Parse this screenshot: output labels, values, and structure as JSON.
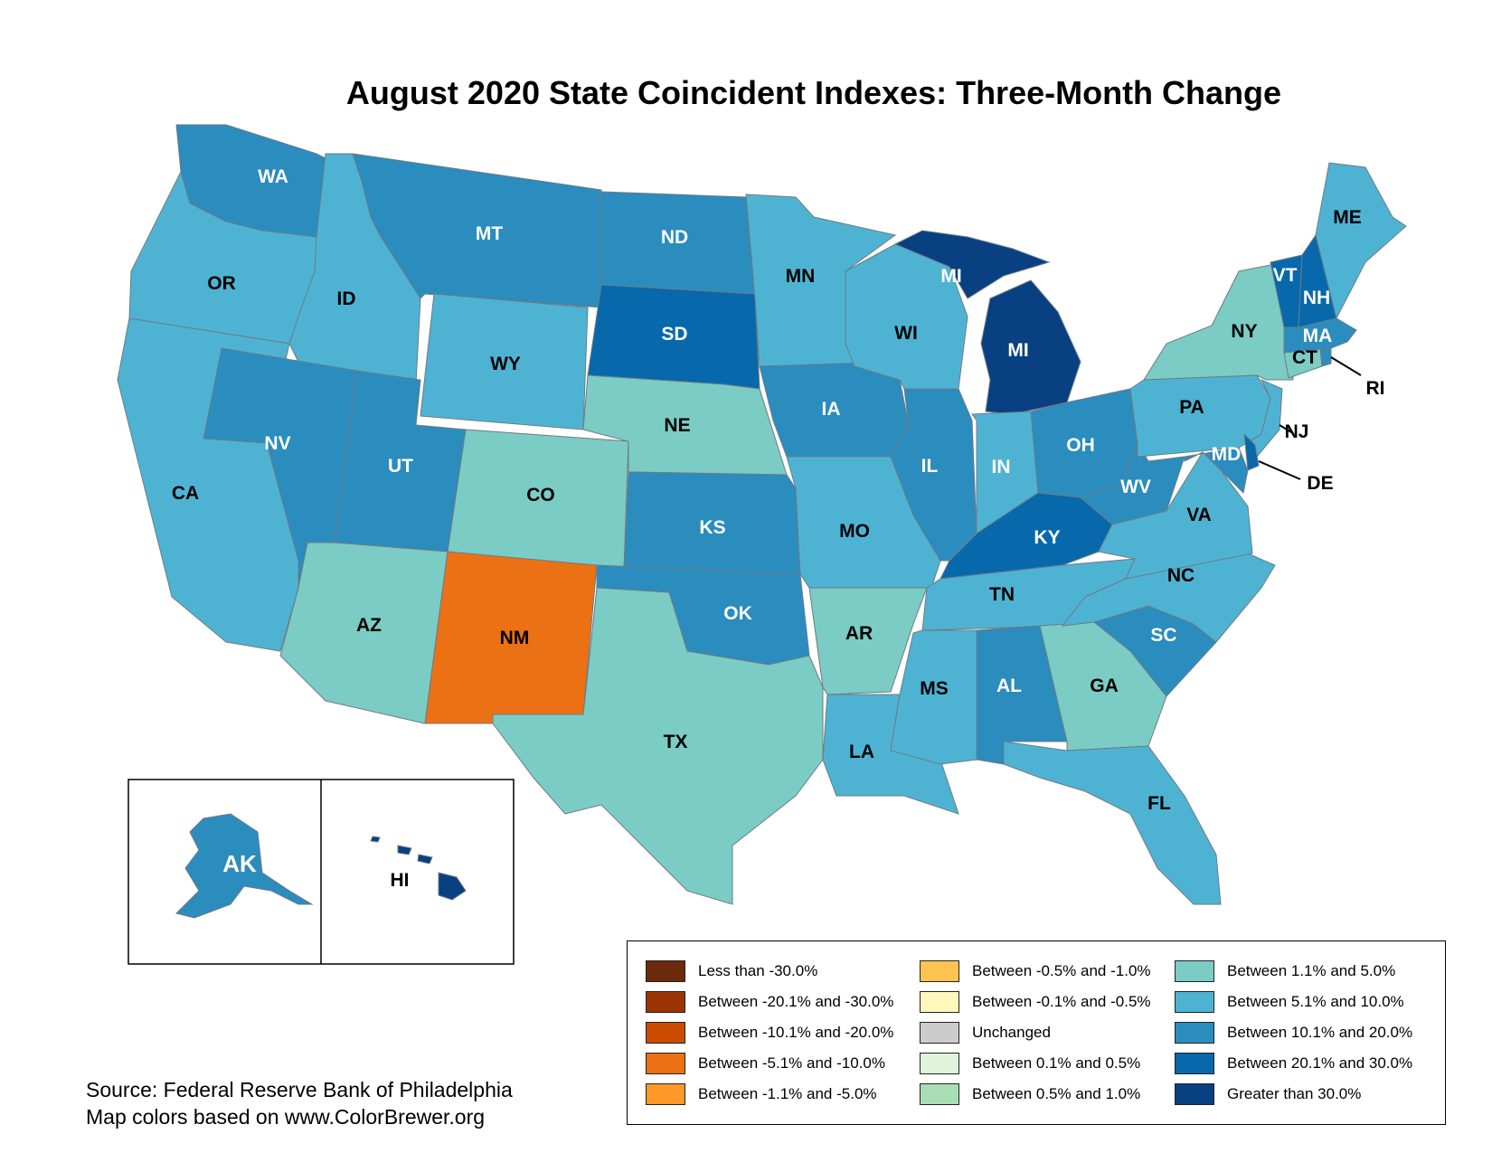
{
  "title": "August 2020 State Coincident Indexes: Three-Month Change",
  "source_lines": [
    "Source: Federal Reserve Bank of Philadelphia",
    "Map colors based on www.ColorBrewer.org"
  ],
  "legend": [
    {
      "label": "Less than -30.0%",
      "color": "#6b2a0b"
    },
    {
      "label": "Between -20.1% and -30.0%",
      "color": "#9c3405"
    },
    {
      "label": "Between -10.1% and -20.0%",
      "color": "#cc4c02"
    },
    {
      "label": "Between -5.1% and -10.0%",
      "color": "#ec7014"
    },
    {
      "label": "Between -1.1% and -5.0%",
      "color": "#fe9929"
    },
    {
      "label": "Between -0.5% and -1.0%",
      "color": "#fec44f"
    },
    {
      "label": "Between -0.1% and -0.5%",
      "color": "#fff7bc"
    },
    {
      "label": "Unchanged",
      "color": "#cccccc"
    },
    {
      "label": "Between 0.1% and 0.5%",
      "color": "#e0f3db"
    },
    {
      "label": "Between 0.5% and 1.0%",
      "color": "#a8ddb5"
    },
    {
      "label": "Between 1.1% and 5.0%",
      "color": "#7bccc4"
    },
    {
      "label": "Between 5.1% and 10.0%",
      "color": "#4eb3d3"
    },
    {
      "label": "Between 10.1% and 20.0%",
      "color": "#2b8cbe"
    },
    {
      "label": "Between 20.1% and 30.0%",
      "color": "#0868ac"
    },
    {
      "label": "Greater than 30.0%",
      "color": "#084081"
    }
  ],
  "states": [
    {
      "abbr": "WA",
      "class": "Between 10.1% and 20.0%"
    },
    {
      "abbr": "OR",
      "class": "Between 5.1% and 10.0%"
    },
    {
      "abbr": "CA",
      "class": "Between 5.1% and 10.0%"
    },
    {
      "abbr": "ID",
      "class": "Between 5.1% and 10.0%"
    },
    {
      "abbr": "NV",
      "class": "Between 10.1% and 20.0%"
    },
    {
      "abbr": "MT",
      "class": "Between 10.1% and 20.0%"
    },
    {
      "abbr": "WY",
      "class": "Between 5.1% and 10.0%"
    },
    {
      "abbr": "UT",
      "class": "Between 10.1% and 20.0%"
    },
    {
      "abbr": "AZ",
      "class": "Between 1.1% and 5.0%"
    },
    {
      "abbr": "CO",
      "class": "Between 1.1% and 5.0%"
    },
    {
      "abbr": "NM",
      "class": "Between -5.1% and -10.0%"
    },
    {
      "abbr": "ND",
      "class": "Between 10.1% and 20.0%"
    },
    {
      "abbr": "SD",
      "class": "Between 20.1% and 30.0%"
    },
    {
      "abbr": "NE",
      "class": "Between 1.1% and 5.0%"
    },
    {
      "abbr": "KS",
      "class": "Between 10.1% and 20.0%"
    },
    {
      "abbr": "OK",
      "class": "Between 10.1% and 20.0%"
    },
    {
      "abbr": "TX",
      "class": "Between 1.1% and 5.0%"
    },
    {
      "abbr": "MN",
      "class": "Between 5.1% and 10.0%"
    },
    {
      "abbr": "IA",
      "class": "Between 10.1% and 20.0%"
    },
    {
      "abbr": "MO",
      "class": "Between 5.1% and 10.0%"
    },
    {
      "abbr": "AR",
      "class": "Between 1.1% and 5.0%"
    },
    {
      "abbr": "LA",
      "class": "Between 5.1% and 10.0%"
    },
    {
      "abbr": "WI",
      "class": "Between 5.1% and 10.0%"
    },
    {
      "abbr": "IL",
      "class": "Between 10.1% and 20.0%"
    },
    {
      "abbr": "MI",
      "class": "Greater than 30.0%"
    },
    {
      "abbr": "IN",
      "class": "Between 5.1% and 10.0%"
    },
    {
      "abbr": "OH",
      "class": "Between 10.1% and 20.0%"
    },
    {
      "abbr": "KY",
      "class": "Between 20.1% and 30.0%"
    },
    {
      "abbr": "TN",
      "class": "Between 5.1% and 10.0%"
    },
    {
      "abbr": "MS",
      "class": "Between 5.1% and 10.0%"
    },
    {
      "abbr": "AL",
      "class": "Between 10.1% and 20.0%"
    },
    {
      "abbr": "GA",
      "class": "Between 1.1% and 5.0%"
    },
    {
      "abbr": "FL",
      "class": "Between 5.1% and 10.0%"
    },
    {
      "abbr": "SC",
      "class": "Between 10.1% and 20.0%"
    },
    {
      "abbr": "NC",
      "class": "Between 5.1% and 10.0%"
    },
    {
      "abbr": "VA",
      "class": "Between 5.1% and 10.0%"
    },
    {
      "abbr": "WV",
      "class": "Between 10.1% and 20.0%"
    },
    {
      "abbr": "PA",
      "class": "Between 5.1% and 10.0%"
    },
    {
      "abbr": "NY",
      "class": "Between 1.1% and 5.0%"
    },
    {
      "abbr": "NJ",
      "class": "Between 5.1% and 10.0%"
    },
    {
      "abbr": "DE",
      "class": "Between 20.1% and 30.0%"
    },
    {
      "abbr": "MD",
      "class": "Between 10.1% and 20.0%"
    },
    {
      "abbr": "CT",
      "class": "Between 1.1% and 5.0%"
    },
    {
      "abbr": "RI",
      "class": "Between 10.1% and 20.0%"
    },
    {
      "abbr": "MA",
      "class": "Between 10.1% and 20.0%"
    },
    {
      "abbr": "VT",
      "class": "Between 20.1% and 30.0%"
    },
    {
      "abbr": "NH",
      "class": "Between 20.1% and 30.0%"
    },
    {
      "abbr": "ME",
      "class": "Between 5.1% and 10.0%"
    },
    {
      "abbr": "AK",
      "class": "Between 10.1% and 20.0%"
    },
    {
      "abbr": "HI",
      "class": "Greater than 30.0%"
    }
  ]
}
